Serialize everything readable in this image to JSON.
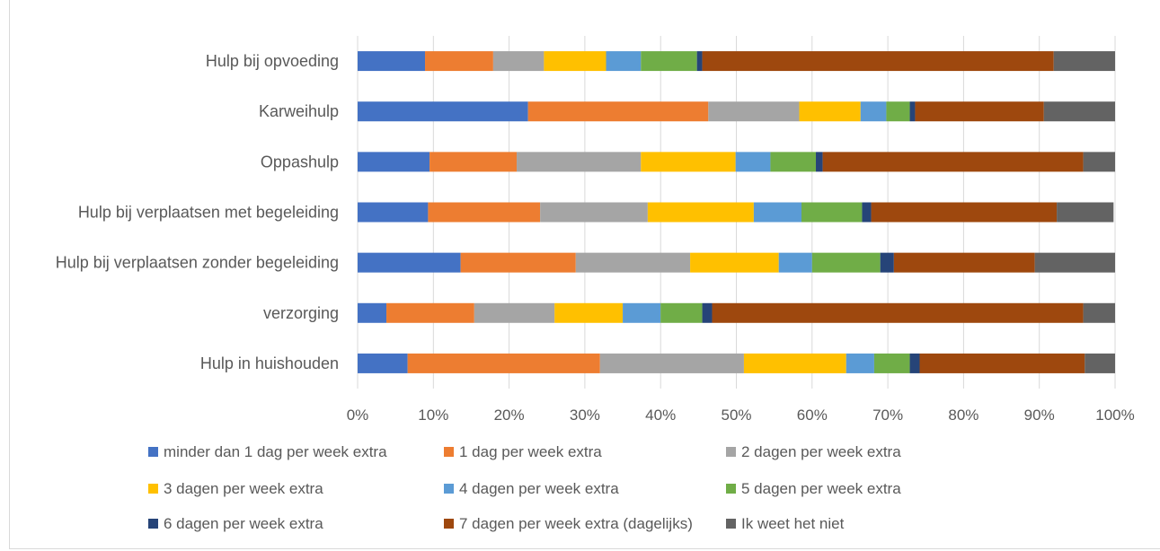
{
  "chart_data": {
    "type": "bar",
    "orientation": "horizontal",
    "stacked": "percent",
    "categories": [
      "Hulp bij opvoeding",
      "Karweihulp",
      "Oppashulp",
      "Hulp bij verplaatsen met begeleiding",
      "Hulp bij verplaatsen zonder begeleiding",
      "verzorging",
      "Hulp in huishouden"
    ],
    "series": [
      {
        "name": "minder dan 1 dag per week extra",
        "color": "#4472C4",
        "values": [
          8.9,
          22.5,
          9.5,
          9.3,
          13.6,
          3.8,
          6.6
        ]
      },
      {
        "name": "1 dag per week extra",
        "color": "#ED7D31",
        "values": [
          9.0,
          23.8,
          11.5,
          14.8,
          15.2,
          11.6,
          25.4
        ]
      },
      {
        "name": "2 dagen per week extra",
        "color": "#A5A5A5",
        "values": [
          6.7,
          12.0,
          16.4,
          14.2,
          15.1,
          10.6,
          19.0
        ]
      },
      {
        "name": "3 dagen per week extra",
        "color": "#FFC000",
        "values": [
          8.2,
          8.1,
          12.5,
          14.0,
          11.7,
          9.0,
          13.5
        ]
      },
      {
        "name": "4 dagen per week extra",
        "color": "#5B9BD5",
        "values": [
          4.6,
          3.4,
          4.6,
          6.3,
          4.4,
          5.0,
          3.7
        ]
      },
      {
        "name": "5 dagen per week extra",
        "color": "#70AD47",
        "values": [
          7.4,
          3.1,
          6.0,
          8.0,
          9.0,
          5.5,
          4.7
        ]
      },
      {
        "name": "6 dagen per week extra",
        "color": "#264478",
        "values": [
          0.7,
          0.7,
          0.9,
          1.2,
          1.8,
          1.3,
          1.3
        ]
      },
      {
        "name": "7 dagen per week extra (dagelijks)",
        "color": "#9E480E",
        "values": [
          46.4,
          17.0,
          34.4,
          24.5,
          18.6,
          49.0,
          21.8
        ]
      },
      {
        "name": "Ik weet het niet",
        "color": "#636363",
        "values": [
          8.1,
          9.4,
          4.2,
          7.5,
          10.6,
          4.2,
          4.0
        ]
      }
    ],
    "xlim": [
      0,
      100
    ],
    "xticks": [
      "0%",
      "10%",
      "20%",
      "30%",
      "40%",
      "50%",
      "60%",
      "70%",
      "80%",
      "90%",
      "100%"
    ],
    "grid": true,
    "legend_position": "bottom",
    "title": "",
    "xlabel": "",
    "ylabel": ""
  }
}
